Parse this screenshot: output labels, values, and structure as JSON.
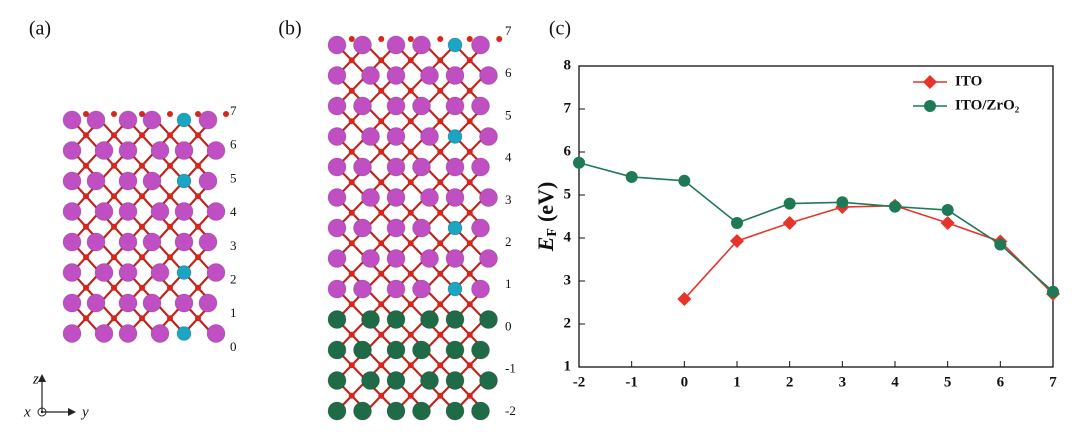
{
  "panels": [
    {
      "label": "(a)",
      "layers": [
        "7",
        "6",
        "5",
        "4",
        "3",
        "2",
        "1",
        "0"
      ]
    },
    {
      "label": "(b)",
      "layers": [
        "7",
        "6",
        "5",
        "4",
        "3",
        "2",
        "1",
        "0",
        "-1",
        "-2"
      ]
    }
  ],
  "axes_triad": {
    "z": "z",
    "x": "x",
    "y": "y"
  },
  "chart_data": {
    "type": "line",
    "panel_label": "(c)",
    "ylabel": {
      "main": "E",
      "sub": "F",
      "unit": "(eV)"
    },
    "x": [
      -2,
      -1,
      0,
      1,
      2,
      3,
      4,
      5,
      6,
      7
    ],
    "series": [
      {
        "name": "ITO",
        "color": "#e8332a",
        "marker": "diamond",
        "values": [
          null,
          null,
          2.58,
          3.93,
          4.35,
          4.72,
          4.75,
          4.35,
          3.92,
          2.7
        ]
      },
      {
        "name": "ITO/ZrO₂",
        "color": "#1e7a55",
        "marker": "circle",
        "values": [
          5.75,
          5.42,
          5.33,
          4.35,
          4.8,
          4.83,
          4.73,
          4.65,
          3.85,
          2.75
        ]
      }
    ],
    "xlim": [
      -2,
      7
    ],
    "xticks": [
      -2,
      -1,
      0,
      1,
      2,
      3,
      4,
      5,
      6,
      7
    ],
    "ylim": [
      1,
      8
    ],
    "yticks": [
      1,
      2,
      3,
      4,
      5,
      6,
      7,
      8
    ],
    "legend": "upper right"
  }
}
